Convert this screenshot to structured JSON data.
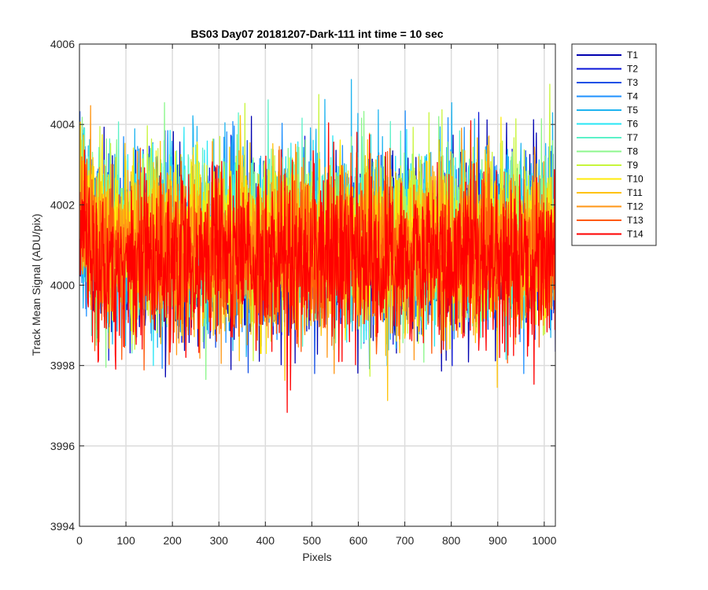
{
  "chart_data": {
    "type": "line",
    "title": "BS03 Day07 20181207-Dark-111 int time = 10 sec",
    "xlabel": "Pixels",
    "ylabel": "Track Mean Signal (ADU/pix)",
    "xlim": [
      0,
      1024
    ],
    "ylim": [
      3994,
      4006
    ],
    "xticks": [
      0,
      100,
      200,
      300,
      400,
      500,
      600,
      700,
      800,
      900,
      1000
    ],
    "yticks": [
      3994,
      3996,
      3998,
      4000,
      4002,
      4004,
      4006
    ],
    "grid": true,
    "legend_position": "outside-top-right",
    "x_range": [
      1,
      1024
    ],
    "series": [
      {
        "name": "T1",
        "color": "#0000b0",
        "mean": 4000.9,
        "min": 3995.9,
        "max": 4004.2
      },
      {
        "name": "T2",
        "color": "#0a14d8",
        "mean": 4001.0,
        "min": 3997.6,
        "max": 4004.3
      },
      {
        "name": "T3",
        "color": "#1450e6",
        "mean": 4001.0,
        "min": 3997.8,
        "max": 4004.4
      },
      {
        "name": "T4",
        "color": "#1e90ff",
        "mean": 4001.1,
        "min": 3997.8,
        "max": 4005.6
      },
      {
        "name": "T5",
        "color": "#1fb4f0",
        "mean": 4001.2,
        "min": 3997.9,
        "max": 4006.0
      },
      {
        "name": "T6",
        "color": "#27e6f5",
        "mean": 4001.2,
        "min": 3998.0,
        "max": 4005.4
      },
      {
        "name": "T7",
        "color": "#5cf2c8",
        "mean": 4001.2,
        "min": 3998.0,
        "max": 4005.2
      },
      {
        "name": "T8",
        "color": "#8cf78c",
        "mean": 4001.3,
        "min": 3997.6,
        "max": 4005.1
      },
      {
        "name": "T9",
        "color": "#c8f53c",
        "mean": 4001.2,
        "min": 3997.1,
        "max": 4005.0
      },
      {
        "name": "T10",
        "color": "#ffeb0a",
        "mean": 4001.1,
        "min": 3998.3,
        "max": 4005.5
      },
      {
        "name": "T11",
        "color": "#ffc30a",
        "mean": 4001.0,
        "min": 3997.0,
        "max": 4005.0
      },
      {
        "name": "T12",
        "color": "#ff9614",
        "mean": 4000.9,
        "min": 3997.8,
        "max": 4005.0
      },
      {
        "name": "T13",
        "color": "#ff5a0a",
        "mean": 4000.8,
        "min": 3997.6,
        "max": 4004.8
      },
      {
        "name": "T14",
        "color": "#ff0000",
        "mean": 4000.6,
        "min": 3996.3,
        "max": 4004.3
      }
    ]
  }
}
